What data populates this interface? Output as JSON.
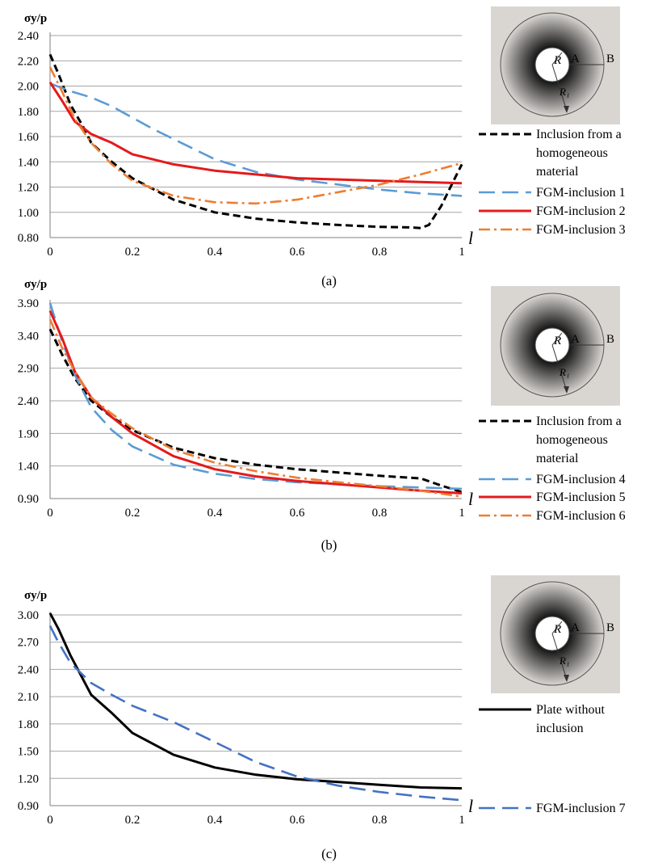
{
  "figure": {
    "panel_labels": [
      "(a)",
      "(b)",
      "(c)"
    ]
  },
  "schematic": {
    "label_r": "R",
    "label_a": "A",
    "label_b": "B",
    "label_r1": "R₁"
  },
  "colors": {
    "homogeneous": "#000000",
    "fgm_blue": "#5b9bd5",
    "fgm_red": "#e41a1c",
    "fgm_orange": "#ed7d31",
    "fgm_dark_blue": "#4472c4",
    "grid": "#a6a6a6",
    "schematic_bg": "#d9d6d2"
  },
  "chart_data": [
    {
      "type": "line",
      "ylabel": "σy/p",
      "xlabel": "l",
      "xlim": [
        0,
        1
      ],
      "ylim": [
        0.8,
        2.4
      ],
      "x_ticks": [
        0,
        0.2,
        0.4,
        0.6,
        0.8,
        1
      ],
      "x_tick_labels": [
        "0",
        "0.2",
        "0.4",
        "0.6",
        "0.8",
        "1"
      ],
      "y_ticks": [
        0.8,
        1.0,
        1.2,
        1.4,
        1.6,
        1.8,
        2.0,
        2.2,
        2.4
      ],
      "y_tick_labels": [
        "0.80",
        "1.00",
        "1.20",
        "1.40",
        "1.60",
        "1.80",
        "2.00",
        "2.20",
        "2.40"
      ],
      "grid": "horizontal",
      "legend_position": "right",
      "series": [
        {
          "name": "Inclusion from a homogeneous material",
          "legend_lines": [
            "Inclusion from a",
            "homogeneous",
            "material"
          ],
          "color": "#000000",
          "style": "dashed",
          "x": [
            0,
            0.02,
            0.05,
            0.08,
            0.1,
            0.15,
            0.2,
            0.3,
            0.4,
            0.5,
            0.6,
            0.7,
            0.8,
            0.88,
            0.9,
            0.92,
            0.95,
            0.98,
            1.0
          ],
          "y": [
            2.25,
            2.1,
            1.85,
            1.68,
            1.55,
            1.4,
            1.27,
            1.1,
            1.0,
            0.95,
            0.92,
            0.9,
            0.885,
            0.88,
            0.875,
            0.9,
            1.05,
            1.25,
            1.38
          ]
        },
        {
          "name": "FGM-inclusion 1",
          "color": "#5b9bd5",
          "style": "long-dashed",
          "x": [
            0,
            0.05,
            0.1,
            0.15,
            0.2,
            0.25,
            0.3,
            0.35,
            0.4,
            0.5,
            0.6,
            0.7,
            0.8,
            0.9,
            1.0
          ],
          "y": [
            2.02,
            1.96,
            1.91,
            1.84,
            1.75,
            1.66,
            1.58,
            1.5,
            1.42,
            1.32,
            1.26,
            1.22,
            1.18,
            1.15,
            1.13
          ]
        },
        {
          "name": "FGM-inclusion 2",
          "color": "#e41a1c",
          "style": "solid",
          "x": [
            0,
            0.03,
            0.06,
            0.1,
            0.15,
            0.2,
            0.3,
            0.4,
            0.5,
            0.6,
            0.7,
            0.8,
            0.9,
            1.0
          ],
          "y": [
            2.03,
            1.88,
            1.72,
            1.62,
            1.55,
            1.46,
            1.38,
            1.33,
            1.3,
            1.27,
            1.26,
            1.25,
            1.24,
            1.23
          ]
        },
        {
          "name": "FGM-inclusion 3",
          "color": "#ed7d31",
          "style": "dash-dot",
          "x": [
            0,
            0.03,
            0.06,
            0.1,
            0.15,
            0.2,
            0.3,
            0.4,
            0.5,
            0.6,
            0.7,
            0.8,
            0.9,
            1.0
          ],
          "y": [
            2.15,
            1.95,
            1.74,
            1.55,
            1.38,
            1.25,
            1.13,
            1.08,
            1.07,
            1.1,
            1.16,
            1.22,
            1.3,
            1.39
          ]
        }
      ]
    },
    {
      "type": "line",
      "ylabel": "σy/p",
      "xlabel": "l",
      "xlim": [
        0,
        1
      ],
      "ylim": [
        0.9,
        3.9
      ],
      "x_ticks": [
        0,
        0.2,
        0.4,
        0.6,
        0.8,
        1
      ],
      "x_tick_labels": [
        "0",
        "0.2",
        "0.4",
        "0.6",
        "0.8",
        "1"
      ],
      "y_ticks": [
        0.9,
        1.4,
        1.9,
        2.4,
        2.9,
        3.4,
        3.9
      ],
      "y_tick_labels": [
        "0.90",
        "1.40",
        "1.90",
        "2.40",
        "2.90",
        "3.40",
        "3.90"
      ],
      "grid": "horizontal",
      "legend_position": "right",
      "series": [
        {
          "name": "Inclusion from a homogeneous material",
          "legend_lines": [
            "Inclusion from a",
            "homogeneous",
            "material"
          ],
          "color": "#000000",
          "style": "dashed",
          "x": [
            0,
            0.03,
            0.06,
            0.1,
            0.15,
            0.2,
            0.3,
            0.4,
            0.5,
            0.6,
            0.7,
            0.8,
            0.9,
            0.95,
            1.0
          ],
          "y": [
            3.5,
            3.1,
            2.75,
            2.4,
            2.15,
            1.95,
            1.68,
            1.52,
            1.42,
            1.35,
            1.3,
            1.25,
            1.21,
            1.1,
            1.0
          ]
        },
        {
          "name": "FGM-inclusion 4",
          "color": "#5b9bd5",
          "style": "long-dashed",
          "x": [
            0,
            0.03,
            0.06,
            0.1,
            0.15,
            0.2,
            0.3,
            0.4,
            0.5,
            0.6,
            0.7,
            0.8,
            0.9,
            1.0
          ],
          "y": [
            3.9,
            3.3,
            2.8,
            2.3,
            1.95,
            1.7,
            1.42,
            1.28,
            1.2,
            1.15,
            1.12,
            1.09,
            1.07,
            1.05
          ]
        },
        {
          "name": "FGM-inclusion 5",
          "color": "#e41a1c",
          "style": "solid",
          "x": [
            0,
            0.03,
            0.06,
            0.1,
            0.15,
            0.2,
            0.3,
            0.4,
            0.5,
            0.6,
            0.7,
            0.8,
            0.9,
            1.0
          ],
          "y": [
            3.78,
            3.35,
            2.85,
            2.45,
            2.15,
            1.9,
            1.55,
            1.35,
            1.24,
            1.17,
            1.12,
            1.07,
            1.02,
            0.98
          ]
        },
        {
          "name": "FGM-inclusion 6",
          "color": "#ed7d31",
          "style": "dash-dot",
          "x": [
            0,
            0.03,
            0.06,
            0.1,
            0.15,
            0.2,
            0.3,
            0.4,
            0.5,
            0.6,
            0.7,
            0.8,
            0.9,
            1.0
          ],
          "y": [
            3.65,
            3.2,
            2.85,
            2.45,
            2.2,
            1.98,
            1.65,
            1.45,
            1.32,
            1.22,
            1.15,
            1.09,
            1.02,
            0.93
          ]
        }
      ]
    },
    {
      "type": "line",
      "ylabel": "σy/p",
      "xlabel": "l",
      "xlim": [
        0,
        1
      ],
      "ylim": [
        0.9,
        3.0
      ],
      "x_ticks": [
        0,
        0.2,
        0.4,
        0.6,
        0.8,
        1
      ],
      "x_tick_labels": [
        "0",
        "0.2",
        "0.4",
        "0.6",
        "0.8",
        "1"
      ],
      "y_ticks": [
        0.9,
        1.2,
        1.5,
        1.8,
        2.1,
        2.4,
        2.7,
        3.0
      ],
      "y_tick_labels": [
        "0.90",
        "1.20",
        "1.50",
        "1.80",
        "2.10",
        "2.40",
        "2.70",
        "3.00"
      ],
      "grid": "horizontal",
      "legend_position": "right",
      "series": [
        {
          "name": "Plate without inclusion",
          "legend_lines": [
            "Plate without",
            "inclusion"
          ],
          "color": "#000000",
          "style": "solid",
          "x": [
            0,
            0.02,
            0.05,
            0.1,
            0.15,
            0.2,
            0.25,
            0.3,
            0.4,
            0.5,
            0.6,
            0.7,
            0.8,
            0.9,
            1.0
          ],
          "y": [
            3.02,
            2.85,
            2.55,
            2.12,
            1.92,
            1.7,
            1.58,
            1.46,
            1.32,
            1.24,
            1.19,
            1.16,
            1.13,
            1.1,
            1.09
          ]
        },
        {
          "name": "FGM-inclusion 7",
          "color": "#4472c4",
          "style": "long-dashed",
          "x": [
            0,
            0.02,
            0.05,
            0.1,
            0.15,
            0.2,
            0.3,
            0.4,
            0.5,
            0.6,
            0.7,
            0.8,
            0.9,
            1.0
          ],
          "y": [
            2.88,
            2.7,
            2.47,
            2.25,
            2.12,
            2.0,
            1.82,
            1.6,
            1.38,
            1.22,
            1.12,
            1.05,
            1.0,
            0.96
          ]
        }
      ]
    }
  ]
}
